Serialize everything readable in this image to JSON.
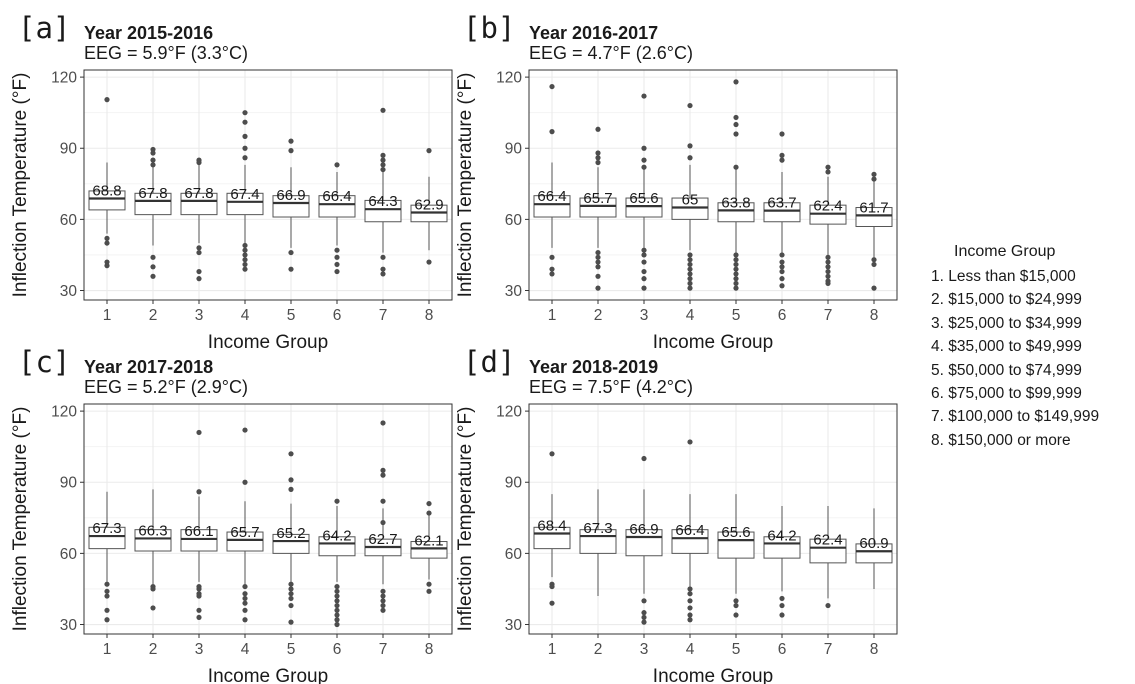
{
  "legend": {
    "title": "Income Group",
    "items": [
      "1. Less than $15,000",
      "2. $15,000 to $24,999",
      "3. $25,000 to $34,999",
      "4. $35,000 to $49,999",
      "5. $50,000 to $74,999",
      "6. $75,000 to $99,999",
      "7. $100,000 to $149,999",
      "8. $150,000 or more"
    ]
  },
  "colors": {
    "box_fill": "#ffffff",
    "box_stroke": "#555555",
    "outlier": "#4d4d4d",
    "grid": "#ebebeb",
    "panel_border": "#333333"
  },
  "chart_data": [
    {
      "type": "boxplot",
      "panel_label": "[a]",
      "title": "Year 2015-2016",
      "subtitle": "EEG = 5.9°F (3.3°C)",
      "xlabel": "Income Group",
      "ylabel": "Inflection Temperature (°F)",
      "categories": [
        "1",
        "2",
        "3",
        "4",
        "5",
        "6",
        "7",
        "8"
      ],
      "yticks": [
        30,
        60,
        90,
        120
      ],
      "ylim": [
        26,
        123
      ],
      "grid": true,
      "medians": [
        68.8,
        67.8,
        67.8,
        67.4,
        66.9,
        66.4,
        64.3,
        62.9
      ],
      "median_labels": [
        "68.8",
        "67.8",
        "67.8",
        "67.4",
        "66.9",
        "66.4",
        "64.3",
        "62.9"
      ],
      "boxes": [
        {
          "q1": 64,
          "q3": 72,
          "wlo": 54,
          "whi": 84
        },
        {
          "q1": 62,
          "q3": 71,
          "wlo": 49,
          "whi": 84
        },
        {
          "q1": 62,
          "q3": 71,
          "wlo": 50,
          "whi": 83
        },
        {
          "q1": 62,
          "q3": 71,
          "wlo": 50,
          "whi": 83
        },
        {
          "q1": 61,
          "q3": 70,
          "wlo": 48,
          "whi": 82
        },
        {
          "q1": 61,
          "q3": 70,
          "wlo": 49,
          "whi": 80
        },
        {
          "q1": 59,
          "q3": 68,
          "wlo": 46,
          "whi": 80
        },
        {
          "q1": 59,
          "q3": 66,
          "wlo": 47,
          "whi": 78
        }
      ],
      "outliers": [
        [
          110.5,
          52,
          50,
          42,
          40.5
        ],
        [
          89.5,
          88,
          85,
          83,
          44,
          40,
          36
        ],
        [
          85,
          84,
          48,
          46,
          38,
          35
        ],
        [
          105,
          101,
          95,
          90,
          86,
          49,
          47,
          45,
          43,
          41,
          39
        ],
        [
          93,
          89,
          46,
          39
        ],
        [
          83,
          47,
          44,
          41,
          38
        ],
        [
          106,
          87,
          85,
          83,
          81,
          44,
          39,
          37
        ],
        [
          89,
          42
        ]
      ]
    },
    {
      "type": "boxplot",
      "panel_label": "[b]",
      "title": "Year 2016-2017",
      "subtitle": "EEG = 4.7°F (2.6°C)",
      "xlabel": "Income Group",
      "ylabel": "Inflection Temperature (°F)",
      "categories": [
        "1",
        "2",
        "3",
        "4",
        "5",
        "6",
        "7",
        "8"
      ],
      "yticks": [
        30,
        60,
        90,
        120
      ],
      "ylim": [
        26,
        123
      ],
      "grid": true,
      "medians": [
        66.4,
        65.7,
        65.6,
        65,
        63.8,
        63.7,
        62.4,
        61.7
      ],
      "median_labels": [
        "66.4",
        "65.7",
        "65.6",
        "65",
        "63.8",
        "63.7",
        "62.4",
        "61.7"
      ],
      "boxes": [
        {
          "q1": 61,
          "q3": 70,
          "wlo": 48,
          "whi": 84
        },
        {
          "q1": 61,
          "q3": 69,
          "wlo": 48,
          "whi": 82
        },
        {
          "q1": 61,
          "q3": 69,
          "wlo": 48,
          "whi": 82
        },
        {
          "q1": 60,
          "q3": 69,
          "wlo": 47,
          "whi": 83
        },
        {
          "q1": 59,
          "q3": 67,
          "wlo": 46,
          "whi": 81
        },
        {
          "q1": 59,
          "q3": 67,
          "wlo": 46,
          "whi": 80
        },
        {
          "q1": 58,
          "q3": 66,
          "wlo": 45,
          "whi": 78
        },
        {
          "q1": 57,
          "q3": 65,
          "wlo": 44,
          "whi": 77
        }
      ],
      "outliers": [
        [
          116,
          97,
          44,
          39,
          37
        ],
        [
          98,
          88,
          86,
          84,
          46,
          44,
          42,
          40,
          36,
          31
        ],
        [
          112,
          90,
          85,
          82,
          47,
          45,
          42,
          38,
          35,
          31
        ],
        [
          108,
          91,
          86,
          45,
          43,
          41,
          39,
          37,
          35,
          33,
          31
        ],
        [
          118,
          103,
          100,
          96,
          82,
          45,
          43,
          41,
          39,
          37,
          35,
          33,
          31
        ],
        [
          96,
          87,
          85,
          45,
          42,
          40,
          38,
          35,
          32
        ],
        [
          82,
          80,
          44,
          42,
          40,
          38,
          36,
          34,
          33
        ],
        [
          79,
          77,
          43,
          41,
          31
        ]
      ]
    },
    {
      "type": "boxplot",
      "panel_label": "[c]",
      "title": "Year 2017-2018",
      "subtitle": "EEG = 5.2°F (2.9°C)",
      "xlabel": "Income Group",
      "ylabel": "Inflection Temperature (°F)",
      "categories": [
        "1",
        "2",
        "3",
        "4",
        "5",
        "6",
        "7",
        "8"
      ],
      "yticks": [
        30,
        60,
        90,
        120
      ],
      "ylim": [
        26,
        123
      ],
      "grid": true,
      "medians": [
        67.3,
        66.3,
        66.1,
        65.7,
        65.2,
        64.2,
        62.7,
        62.1
      ],
      "median_labels": [
        "67.3",
        "66.3",
        "66.1",
        "65.7",
        "65.2",
        "64.2",
        "62.7",
        "62.1"
      ],
      "boxes": [
        {
          "q1": 62,
          "q3": 71,
          "wlo": 48,
          "whi": 86
        },
        {
          "q1": 61,
          "q3": 70,
          "wlo": 47,
          "whi": 87
        },
        {
          "q1": 61,
          "q3": 70,
          "wlo": 48,
          "whi": 84
        },
        {
          "q1": 61,
          "q3": 69,
          "wlo": 47,
          "whi": 82
        },
        {
          "q1": 60,
          "q3": 68,
          "wlo": 48,
          "whi": 81
        },
        {
          "q1": 59,
          "q3": 67,
          "wlo": 48,
          "whi": 80
        },
        {
          "q1": 59,
          "q3": 66,
          "wlo": 47,
          "whi": 79
        },
        {
          "q1": 58,
          "q3": 65,
          "wlo": 49,
          "whi": 77
        }
      ],
      "outliers": [
        [
          47,
          44,
          42,
          36,
          32
        ],
        [
          46,
          45,
          37
        ],
        [
          111,
          86,
          46,
          45,
          43,
          42,
          36,
          33
        ],
        [
          112,
          90,
          46,
          43,
          41,
          39,
          36,
          32
        ],
        [
          102,
          91,
          87,
          47,
          45,
          43,
          41,
          38,
          31
        ],
        [
          82,
          46,
          44,
          42,
          40,
          38,
          36,
          34,
          32,
          30
        ],
        [
          115,
          95,
          93,
          82,
          73,
          44,
          42,
          40,
          38,
          36
        ],
        [
          81,
          77,
          47,
          44
        ]
      ]
    },
    {
      "type": "boxplot",
      "panel_label": "[d]",
      "title": "Year 2018-2019",
      "subtitle": "EEG = 7.5°F (4.2°C)",
      "xlabel": "Income Group",
      "ylabel": "Inflection Temperature (°F)",
      "categories": [
        "1",
        "2",
        "3",
        "4",
        "5",
        "6",
        "7",
        "8"
      ],
      "yticks": [
        30,
        60,
        90,
        120
      ],
      "ylim": [
        26,
        123
      ],
      "grid": true,
      "medians": [
        68.4,
        67.3,
        66.9,
        66.4,
        65.6,
        64.2,
        62.4,
        60.9
      ],
      "median_labels": [
        "68.4",
        "67.3",
        "66.9",
        "66.4",
        "65.6",
        "64.2",
        "62.4",
        "60.9"
      ],
      "boxes": [
        {
          "q1": 62,
          "q3": 71,
          "wlo": 50,
          "whi": 85
        },
        {
          "q1": 60,
          "q3": 70,
          "wlo": 42,
          "whi": 87
        },
        {
          "q1": 59,
          "q3": 70,
          "wlo": 43,
          "whi": 87
        },
        {
          "q1": 60,
          "q3": 70,
          "wlo": 46,
          "whi": 85
        },
        {
          "q1": 58,
          "q3": 69,
          "wlo": 43,
          "whi": 85
        },
        {
          "q1": 58,
          "q3": 67,
          "wlo": 44,
          "whi": 80
        },
        {
          "q1": 56,
          "q3": 66,
          "wlo": 41,
          "whi": 80
        },
        {
          "q1": 56,
          "q3": 64,
          "wlo": 45,
          "whi": 79
        }
      ],
      "outliers": [
        [
          102,
          47,
          46,
          39
        ],
        [],
        [
          100,
          40,
          35,
          33,
          31
        ],
        [
          107,
          45,
          43,
          40,
          37,
          34,
          32
        ],
        [
          40,
          38,
          34
        ],
        [
          41,
          38,
          34
        ],
        [
          38
        ],
        []
      ]
    }
  ]
}
